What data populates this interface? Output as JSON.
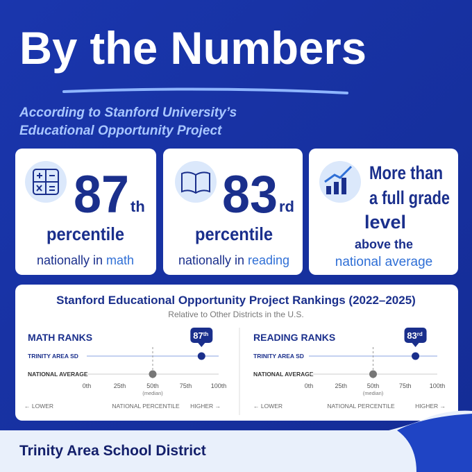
{
  "header": {
    "title": "By the Numbers",
    "subtitle_lines": [
      "According to Stanford University’s",
      "Educational Opportunity Project"
    ]
  },
  "cards": [
    {
      "number": 87,
      "suffix": "th",
      "line1": "percentile",
      "line2": "nationally in",
      "highlight": "math"
    },
    {
      "number": 83,
      "suffix": "rd",
      "line1": "percentile",
      "line2": "nationally in",
      "highlight": "reading"
    },
    {
      "lines": [
        "More than",
        "a full grade",
        "level"
      ],
      "line4": "above the",
      "highlight": "national average"
    }
  ],
  "rankings": {
    "title": "Stanford Educational Opportunity Project Rankings (2022–2025)",
    "subtitle": "Relative to Other Districts in the U.S.",
    "charts": [
      {
        "type": "dot",
        "title": "MATH RANKS",
        "rows": [
          "TRINITY AREA SD",
          "NATIONAL AVERAGE"
        ],
        "values": [
          87,
          50
        ],
        "badge_suffix": "th",
        "xlim": [
          0,
          100
        ],
        "xticks": [
          {
            "value": 0,
            "label": "0th"
          },
          {
            "value": 25,
            "label": "25th"
          },
          {
            "value": 50,
            "label": "50th"
          },
          {
            "value": 75,
            "label": "75th"
          },
          {
            "value": 100,
            "label": "100th"
          }
        ],
        "median_note": "(median)",
        "axis_labels": {
          "low": "← LOWER",
          "title": "NATIONAL PERCENTILE",
          "high": "HIGHER →"
        }
      },
      {
        "type": "dot",
        "title": "READING RANKS",
        "rows": [
          "TRINITY AREA SD",
          "NATIONAL AVERAGE"
        ],
        "values": [
          83,
          50
        ],
        "badge_suffix": "rd",
        "xlim": [
          0,
          100
        ],
        "xticks": [
          {
            "value": 0,
            "label": "0th"
          },
          {
            "value": 25,
            "label": "25th"
          },
          {
            "value": 50,
            "label": "50th"
          },
          {
            "value": 75,
            "label": "75th"
          },
          {
            "value": 100,
            "label": "100th"
          }
        ],
        "median_note": "(median)",
        "axis_labels": {
          "low": "← LOWER",
          "title": "NATIONAL PERCENTILE",
          "high": "HIGHER →"
        }
      }
    ]
  },
  "footer": {
    "text": "Trinity Area School District"
  }
}
